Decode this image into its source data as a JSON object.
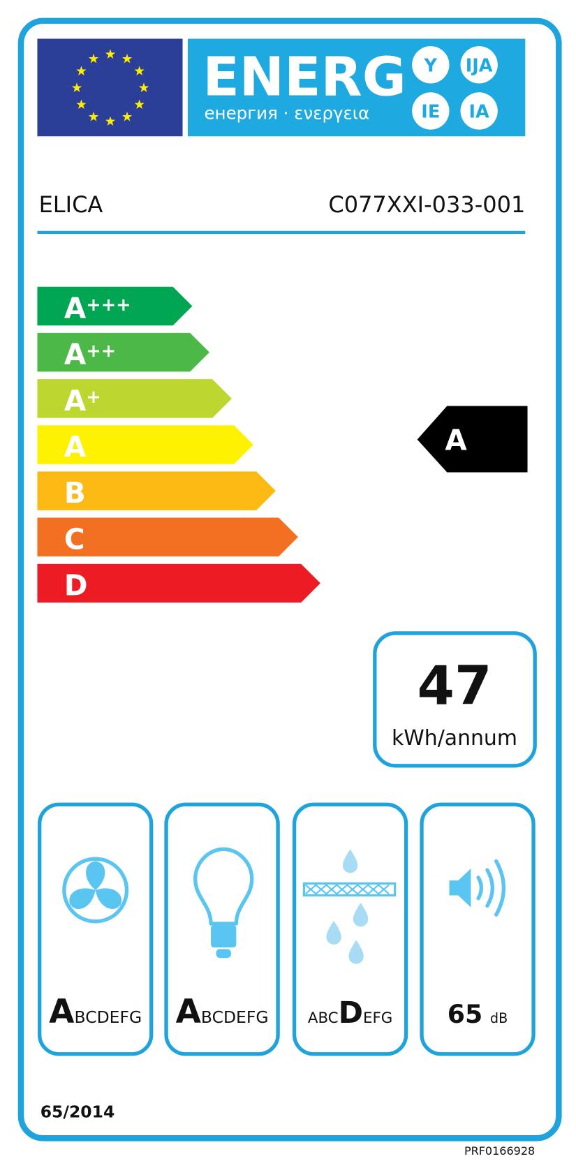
{
  "header": {
    "title": "ENERG",
    "subtitle": "енергия · ενεργεια",
    "suffixes": [
      "Y",
      "IJA",
      "IE",
      "IA"
    ]
  },
  "supplier": "ELICA",
  "model": "C077XXI-033-001",
  "classes": [
    {
      "letter": "A",
      "plus": "+++",
      "color": "#00a651"
    },
    {
      "letter": "A",
      "plus": "++",
      "color": "#4cb848"
    },
    {
      "letter": "A",
      "plus": "+",
      "color": "#bed630"
    },
    {
      "letter": "A",
      "color": "#fff200"
    },
    {
      "letter": "B",
      "color": "#fcb813"
    },
    {
      "letter": "C",
      "color": "#f36f21"
    },
    {
      "letter": "D",
      "color": "#ed1c24"
    }
  ],
  "rating": "A",
  "consumption": {
    "value": "47",
    "unit": "kWh/annum"
  },
  "pictograms": [
    {
      "highlight": "A",
      "after": "BCDEFG"
    },
    {
      "highlight": "A",
      "after": "BCDEFG"
    },
    {
      "before": "ABC",
      "highlight": "D",
      "after": "EFG"
    },
    {
      "value": "65",
      "unit": "dB"
    }
  ],
  "regulation": "65/2014",
  "code": "PRF0166928"
}
